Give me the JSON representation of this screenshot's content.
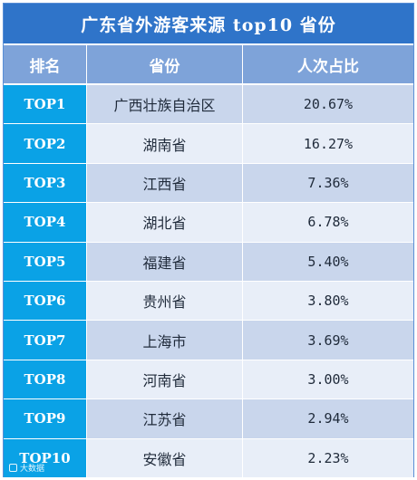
{
  "title": "广东省外游客来源 top10 省份",
  "columns": [
    "排名",
    "省份",
    "人次占比"
  ],
  "rows": [
    {
      "rank": "TOP1",
      "province": "广西壮族自治区",
      "share": "20.67%"
    },
    {
      "rank": "TOP2",
      "province": "湖南省",
      "share": "16.27%"
    },
    {
      "rank": "TOP3",
      "province": "江西省",
      "share": "7.36%"
    },
    {
      "rank": "TOP4",
      "province": "湖北省",
      "share": "6.78%"
    },
    {
      "rank": "TOP5",
      "province": "福建省",
      "share": "5.40%"
    },
    {
      "rank": "TOP6",
      "province": "贵州省",
      "share": "3.80%"
    },
    {
      "rank": "TOP7",
      "province": "上海市",
      "share": "3.69%"
    },
    {
      "rank": "TOP8",
      "province": "河南省",
      "share": "3.00%"
    },
    {
      "rank": "TOP9",
      "province": "江苏省",
      "share": "2.94%"
    },
    {
      "rank": "TOP10",
      "province": "安徽省",
      "share": "2.23%"
    }
  ],
  "watermark": "大数据",
  "colors": {
    "title_bg": "#2f74c9",
    "header_bg": "#7ea3d9",
    "rank_bg": "#0aa2e6",
    "row_odd": "#c9d6ec",
    "row_even": "#e8eef8"
  }
}
